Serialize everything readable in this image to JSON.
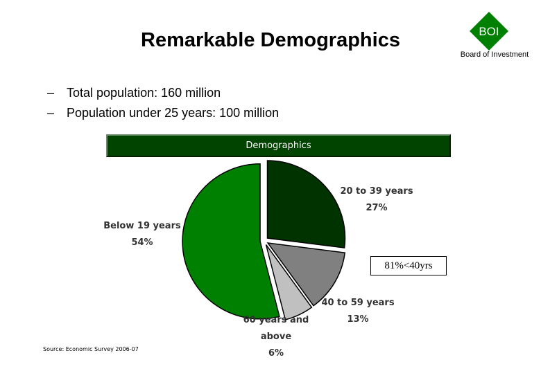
{
  "slide": {
    "title": "Remarkable Demographics",
    "logo_text": "BOI",
    "logo_caption": "Board of Investment",
    "bullets": [
      {
        "dash": "–",
        "text": "Total population: 160 million"
      },
      {
        "dash": "–",
        "text": "Population under 25 years: 100 million"
      }
    ],
    "callout": "81%<40yrs",
    "source": "Source: Economic Survey 2006-07"
  },
  "colors": {
    "brand_green": "#008000",
    "banner": "#004400"
  },
  "chart_data": {
    "type": "pie",
    "title": "Demographics",
    "slices": [
      {
        "name": "20 to 39 years",
        "value": 27,
        "label": "27%",
        "color": "#003300"
      },
      {
        "name": "40 to 59 years",
        "value": 13,
        "label": "13%",
        "color": "#808080"
      },
      {
        "name": "60 years and above",
        "value": 6,
        "label": "6%",
        "color": "#c0c0c0"
      },
      {
        "name": "Below 19 years",
        "value": 54,
        "label": "54%",
        "color": "#008000"
      }
    ],
    "label_lines": [
      [
        "20 to 39 years",
        "27%"
      ],
      [
        "40 to 59 years",
        "13%"
      ],
      [
        "60 years and",
        "above",
        "6%"
      ],
      [
        "Below 19 years",
        "54%"
      ]
    ]
  }
}
